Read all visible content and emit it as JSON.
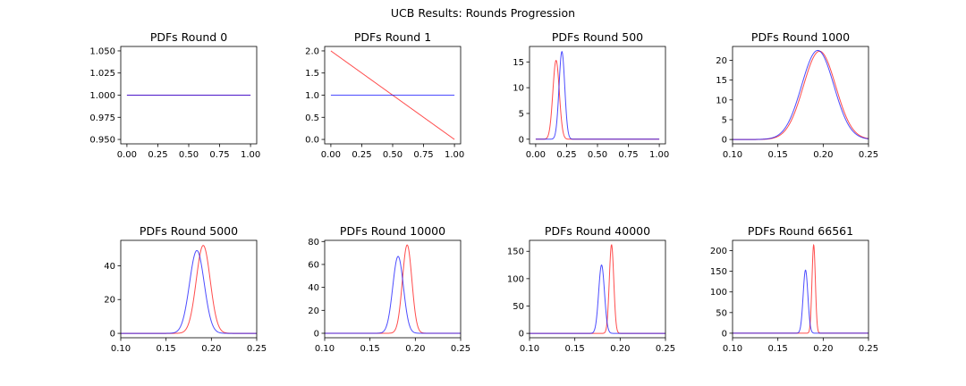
{
  "figure": {
    "title": "UCB Results: Rounds Progression"
  },
  "colors": {
    "series_a": "#ff0000",
    "series_b": "#0000ff"
  },
  "chart_data": [
    {
      "type": "line",
      "title": "PDFs Round 0",
      "xlim": [
        -0.05,
        1.05
      ],
      "ylim": [
        0.945,
        1.055
      ],
      "xticks": [
        0,
        0.25,
        0.5,
        0.75,
        1
      ],
      "xtick_labels": [
        "0.00",
        "0.25",
        "0.50",
        "0.75",
        "1.00"
      ],
      "yticks": [
        0.95,
        0.975,
        1.0,
        1.025,
        1.05
      ],
      "ytick_labels": [
        "0.950",
        "0.975",
        "1.000",
        "1.025",
        "1.050"
      ],
      "series": [
        {
          "kind": "beta",
          "a": 1,
          "b": 1,
          "color": "#ff0000"
        },
        {
          "kind": "beta",
          "a": 1,
          "b": 1,
          "color": "#0000ff"
        }
      ]
    },
    {
      "type": "line",
      "title": "PDFs Round 1",
      "xlim": [
        -0.05,
        1.05
      ],
      "ylim": [
        -0.1,
        2.1
      ],
      "xticks": [
        0,
        0.25,
        0.5,
        0.75,
        1
      ],
      "xtick_labels": [
        "0.00",
        "0.25",
        "0.50",
        "0.75",
        "1.00"
      ],
      "yticks": [
        0,
        0.5,
        1,
        1.5,
        2
      ],
      "ytick_labels": [
        "0.0",
        "0.5",
        "1.0",
        "1.5",
        "2.0"
      ],
      "series": [
        {
          "kind": "beta",
          "a": 1,
          "b": 2,
          "color": "#ff0000"
        },
        {
          "kind": "beta",
          "a": 1,
          "b": 1,
          "color": "#0000ff"
        }
      ]
    },
    {
      "type": "line",
      "title": "PDFs Round 500",
      "xlim": [
        -0.05,
        1.05
      ],
      "ylim": [
        -0.9,
        18
      ],
      "xticks": [
        0,
        0.25,
        0.5,
        0.75,
        1
      ],
      "xtick_labels": [
        "0.00",
        "0.25",
        "0.50",
        "0.75",
        "1.00"
      ],
      "yticks": [
        0,
        5,
        10,
        15
      ],
      "ytick_labels": [
        "0",
        "5",
        "10",
        "15"
      ],
      "series": [
        {
          "kind": "gauss",
          "mu": 0.165,
          "sd": 0.026,
          "peak": 15.3,
          "color": "#ff0000"
        },
        {
          "kind": "gauss",
          "mu": 0.212,
          "sd": 0.023,
          "peak": 17.0,
          "color": "#0000ff"
        }
      ]
    },
    {
      "type": "line",
      "title": "PDFs Round 1000",
      "xlim": [
        0.1,
        0.25
      ],
      "ylim": [
        -1.1,
        23.5
      ],
      "xticks": [
        0.1,
        0.15,
        0.2,
        0.25
      ],
      "xtick_labels": [
        "0.10",
        "0.15",
        "0.20",
        "0.25"
      ],
      "yticks": [
        0,
        5,
        10,
        15,
        20
      ],
      "ytick_labels": [
        "0",
        "5",
        "10",
        "15",
        "20"
      ],
      "series": [
        {
          "kind": "gauss",
          "mu": 0.196,
          "sd": 0.0178,
          "peak": 22.3,
          "color": "#ff0000"
        },
        {
          "kind": "gauss",
          "mu": 0.194,
          "sd": 0.0178,
          "peak": 22.5,
          "color": "#0000ff"
        }
      ]
    },
    {
      "type": "line",
      "title": "PDFs Round 5000",
      "xlim": [
        0.1,
        0.25
      ],
      "ylim": [
        -2.6,
        55
      ],
      "xticks": [
        0.1,
        0.15,
        0.2,
        0.25
      ],
      "xtick_labels": [
        "0.10",
        "0.15",
        "0.20",
        "0.25"
      ],
      "yticks": [
        0,
        20,
        40
      ],
      "ytick_labels": [
        "0",
        "20",
        "40"
      ],
      "series": [
        {
          "kind": "gauss",
          "mu": 0.191,
          "sd": 0.0077,
          "peak": 52,
          "color": "#ff0000"
        },
        {
          "kind": "gauss",
          "mu": 0.184,
          "sd": 0.0081,
          "peak": 49,
          "color": "#0000ff"
        }
      ]
    },
    {
      "type": "line",
      "title": "PDFs Round 10000",
      "xlim": [
        0.1,
        0.25
      ],
      "ylim": [
        -3.9,
        81
      ],
      "xticks": [
        0.1,
        0.15,
        0.2,
        0.25
      ],
      "xtick_labels": [
        "0.10",
        "0.15",
        "0.20",
        "0.25"
      ],
      "yticks": [
        0,
        20,
        40,
        60,
        80
      ],
      "ytick_labels": [
        "0",
        "20",
        "40",
        "60",
        "80"
      ],
      "series": [
        {
          "kind": "gauss",
          "mu": 0.191,
          "sd": 0.0052,
          "peak": 77,
          "color": "#ff0000"
        },
        {
          "kind": "gauss",
          "mu": 0.181,
          "sd": 0.0059,
          "peak": 67,
          "color": "#0000ff"
        }
      ]
    },
    {
      "type": "line",
      "title": "PDFs Round 40000",
      "xlim": [
        0.1,
        0.25
      ],
      "ylim": [
        -8,
        170
      ],
      "xticks": [
        0.1,
        0.15,
        0.2,
        0.25
      ],
      "xtick_labels": [
        "0.10",
        "0.15",
        "0.20",
        "0.25"
      ],
      "yticks": [
        0,
        50,
        100,
        150
      ],
      "ytick_labels": [
        "0",
        "50",
        "100",
        "150"
      ],
      "series": [
        {
          "kind": "gauss",
          "mu": 0.1905,
          "sd": 0.00245,
          "peak": 162,
          "color": "#ff0000"
        },
        {
          "kind": "gauss",
          "mu": 0.1795,
          "sd": 0.0032,
          "peak": 125,
          "color": "#0000ff"
        }
      ]
    },
    {
      "type": "line",
      "title": "PDFs Round 66561",
      "xlim": [
        0.1,
        0.25
      ],
      "ylim": [
        -11,
        225
      ],
      "xticks": [
        0.1,
        0.15,
        0.2,
        0.25
      ],
      "xtick_labels": [
        "0.10",
        "0.15",
        "0.20",
        "0.25"
      ],
      "yticks": [
        0,
        50,
        100,
        150,
        200
      ],
      "ytick_labels": [
        "0",
        "50",
        "100",
        "150",
        "200"
      ],
      "series": [
        {
          "kind": "gauss",
          "mu": 0.1895,
          "sd": 0.00185,
          "peak": 214,
          "color": "#ff0000"
        },
        {
          "kind": "gauss",
          "mu": 0.1805,
          "sd": 0.0026,
          "peak": 153,
          "color": "#0000ff"
        }
      ]
    }
  ]
}
